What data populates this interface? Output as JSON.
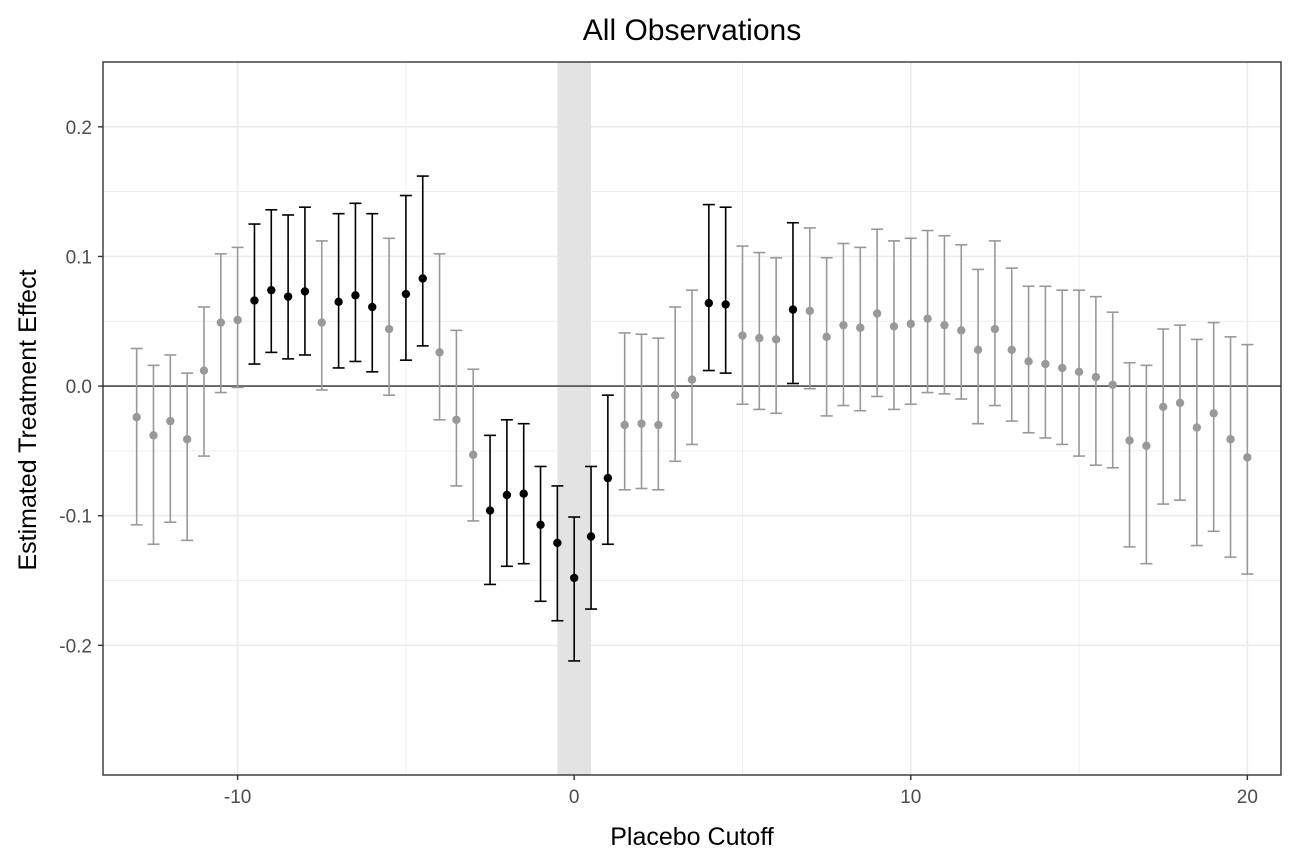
{
  "chart_data": {
    "type": "scatter",
    "title": "All Observations",
    "xlabel": "Placebo Cutoff",
    "ylabel": "Estimated Treatment Effect",
    "xlim": [
      -14,
      21
    ],
    "ylim": [
      -0.3,
      0.25
    ],
    "x_ticks": [
      -10,
      0,
      10,
      20
    ],
    "x_tick_labels": [
      "-10",
      "0",
      "10",
      "20"
    ],
    "y_ticks": [
      -0.2,
      -0.1,
      0.0,
      0.1,
      0.2
    ],
    "y_tick_labels": [
      "-0.2",
      "-0.1",
      "0.0",
      "0.1",
      "0.2"
    ],
    "grid": true,
    "reference_line_y": 0,
    "shaded_band_x": [
      -0.5,
      0.5
    ],
    "colors": {
      "significant": "#000000",
      "not_significant": "#999999",
      "band": "#e3e3e3",
      "grid": "#ebebeb",
      "zero_line": "#4d4d4d"
    },
    "points": [
      {
        "x": -13.0,
        "y": -0.024,
        "lo": -0.107,
        "hi": 0.029,
        "sig": false
      },
      {
        "x": -12.5,
        "y": -0.038,
        "lo": -0.122,
        "hi": 0.016,
        "sig": false
      },
      {
        "x": -12.0,
        "y": -0.027,
        "lo": -0.105,
        "hi": 0.024,
        "sig": false
      },
      {
        "x": -11.5,
        "y": -0.041,
        "lo": -0.119,
        "hi": 0.01,
        "sig": false
      },
      {
        "x": -11.0,
        "y": 0.012,
        "lo": -0.054,
        "hi": 0.061,
        "sig": false
      },
      {
        "x": -10.5,
        "y": 0.049,
        "lo": -0.005,
        "hi": 0.102,
        "sig": false
      },
      {
        "x": -10.0,
        "y": 0.051,
        "lo": -0.001,
        "hi": 0.107,
        "sig": false
      },
      {
        "x": -9.5,
        "y": 0.066,
        "lo": 0.017,
        "hi": 0.125,
        "sig": true
      },
      {
        "x": -9.0,
        "y": 0.074,
        "lo": 0.026,
        "hi": 0.136,
        "sig": true
      },
      {
        "x": -8.5,
        "y": 0.069,
        "lo": 0.021,
        "hi": 0.132,
        "sig": true
      },
      {
        "x": -8.0,
        "y": 0.073,
        "lo": 0.024,
        "hi": 0.138,
        "sig": true
      },
      {
        "x": -7.5,
        "y": 0.049,
        "lo": -0.003,
        "hi": 0.112,
        "sig": false
      },
      {
        "x": -7.0,
        "y": 0.065,
        "lo": 0.014,
        "hi": 0.133,
        "sig": true
      },
      {
        "x": -6.5,
        "y": 0.07,
        "lo": 0.019,
        "hi": 0.141,
        "sig": true
      },
      {
        "x": -6.0,
        "y": 0.061,
        "lo": 0.011,
        "hi": 0.133,
        "sig": true
      },
      {
        "x": -5.5,
        "y": 0.044,
        "lo": -0.007,
        "hi": 0.114,
        "sig": false
      },
      {
        "x": -5.0,
        "y": 0.071,
        "lo": 0.02,
        "hi": 0.147,
        "sig": true
      },
      {
        "x": -4.5,
        "y": 0.083,
        "lo": 0.031,
        "hi": 0.162,
        "sig": true
      },
      {
        "x": -4.0,
        "y": 0.026,
        "lo": -0.026,
        "hi": 0.102,
        "sig": false
      },
      {
        "x": -3.5,
        "y": -0.026,
        "lo": -0.077,
        "hi": 0.043,
        "sig": false
      },
      {
        "x": -3.0,
        "y": -0.053,
        "lo": -0.104,
        "hi": 0.013,
        "sig": false
      },
      {
        "x": -2.5,
        "y": -0.096,
        "lo": -0.153,
        "hi": -0.038,
        "sig": true
      },
      {
        "x": -2.0,
        "y": -0.084,
        "lo": -0.139,
        "hi": -0.026,
        "sig": true
      },
      {
        "x": -1.5,
        "y": -0.083,
        "lo": -0.137,
        "hi": -0.029,
        "sig": true
      },
      {
        "x": -1.0,
        "y": -0.107,
        "lo": -0.166,
        "hi": -0.062,
        "sig": true
      },
      {
        "x": -0.5,
        "y": -0.121,
        "lo": -0.181,
        "hi": -0.077,
        "sig": true
      },
      {
        "x": 0.0,
        "y": -0.148,
        "lo": -0.212,
        "hi": -0.101,
        "sig": true
      },
      {
        "x": 0.5,
        "y": -0.116,
        "lo": -0.172,
        "hi": -0.062,
        "sig": true
      },
      {
        "x": 1.0,
        "y": -0.071,
        "lo": -0.122,
        "hi": -0.007,
        "sig": true
      },
      {
        "x": 1.5,
        "y": -0.03,
        "lo": -0.08,
        "hi": 0.041,
        "sig": false
      },
      {
        "x": 2.0,
        "y": -0.029,
        "lo": -0.079,
        "hi": 0.04,
        "sig": false
      },
      {
        "x": 2.5,
        "y": -0.03,
        "lo": -0.08,
        "hi": 0.037,
        "sig": false
      },
      {
        "x": 3.0,
        "y": -0.007,
        "lo": -0.058,
        "hi": 0.061,
        "sig": false
      },
      {
        "x": 3.5,
        "y": 0.005,
        "lo": -0.045,
        "hi": 0.074,
        "sig": false
      },
      {
        "x": 4.0,
        "y": 0.064,
        "lo": 0.012,
        "hi": 0.14,
        "sig": true
      },
      {
        "x": 4.5,
        "y": 0.063,
        "lo": 0.01,
        "hi": 0.138,
        "sig": true
      },
      {
        "x": 5.0,
        "y": 0.039,
        "lo": -0.014,
        "hi": 0.108,
        "sig": false
      },
      {
        "x": 5.5,
        "y": 0.037,
        "lo": -0.018,
        "hi": 0.103,
        "sig": false
      },
      {
        "x": 6.0,
        "y": 0.036,
        "lo": -0.021,
        "hi": 0.099,
        "sig": false
      },
      {
        "x": 6.5,
        "y": 0.059,
        "lo": 0.002,
        "hi": 0.126,
        "sig": true
      },
      {
        "x": 7.0,
        "y": 0.058,
        "lo": -0.002,
        "hi": 0.122,
        "sig": false
      },
      {
        "x": 7.5,
        "y": 0.038,
        "lo": -0.023,
        "hi": 0.099,
        "sig": false
      },
      {
        "x": 8.0,
        "y": 0.047,
        "lo": -0.015,
        "hi": 0.11,
        "sig": false
      },
      {
        "x": 8.5,
        "y": 0.045,
        "lo": -0.019,
        "hi": 0.107,
        "sig": false
      },
      {
        "x": 9.0,
        "y": 0.056,
        "lo": -0.008,
        "hi": 0.121,
        "sig": false
      },
      {
        "x": 9.5,
        "y": 0.046,
        "lo": -0.018,
        "hi": 0.112,
        "sig": false
      },
      {
        "x": 10.0,
        "y": 0.048,
        "lo": -0.014,
        "hi": 0.114,
        "sig": false
      },
      {
        "x": 10.5,
        "y": 0.052,
        "lo": -0.005,
        "hi": 0.12,
        "sig": false
      },
      {
        "x": 11.0,
        "y": 0.047,
        "lo": -0.006,
        "hi": 0.116,
        "sig": false
      },
      {
        "x": 11.5,
        "y": 0.043,
        "lo": -0.01,
        "hi": 0.109,
        "sig": false
      },
      {
        "x": 12.0,
        "y": 0.028,
        "lo": -0.029,
        "hi": 0.09,
        "sig": false
      },
      {
        "x": 12.5,
        "y": 0.044,
        "lo": -0.015,
        "hi": 0.112,
        "sig": false
      },
      {
        "x": 13.0,
        "y": 0.028,
        "lo": -0.027,
        "hi": 0.091,
        "sig": false
      },
      {
        "x": 13.5,
        "y": 0.019,
        "lo": -0.036,
        "hi": 0.077,
        "sig": false
      },
      {
        "x": 14.0,
        "y": 0.017,
        "lo": -0.04,
        "hi": 0.077,
        "sig": false
      },
      {
        "x": 14.5,
        "y": 0.014,
        "lo": -0.045,
        "hi": 0.074,
        "sig": false
      },
      {
        "x": 15.0,
        "y": 0.011,
        "lo": -0.054,
        "hi": 0.074,
        "sig": false
      },
      {
        "x": 15.5,
        "y": 0.007,
        "lo": -0.061,
        "hi": 0.069,
        "sig": false
      },
      {
        "x": 16.0,
        "y": 0.001,
        "lo": -0.063,
        "hi": 0.057,
        "sig": false
      },
      {
        "x": 16.5,
        "y": -0.042,
        "lo": -0.124,
        "hi": 0.018,
        "sig": false
      },
      {
        "x": 17.0,
        "y": -0.046,
        "lo": -0.137,
        "hi": 0.016,
        "sig": false
      },
      {
        "x": 17.5,
        "y": -0.016,
        "lo": -0.091,
        "hi": 0.044,
        "sig": false
      },
      {
        "x": 18.0,
        "y": -0.013,
        "lo": -0.088,
        "hi": 0.047,
        "sig": false
      },
      {
        "x": 18.5,
        "y": -0.032,
        "lo": -0.123,
        "hi": 0.036,
        "sig": false
      },
      {
        "x": 19.0,
        "y": -0.021,
        "lo": -0.112,
        "hi": 0.049,
        "sig": false
      },
      {
        "x": 19.5,
        "y": -0.041,
        "lo": -0.132,
        "hi": 0.038,
        "sig": false
      },
      {
        "x": 20.0,
        "y": -0.055,
        "lo": -0.145,
        "hi": 0.032,
        "sig": false
      }
    ]
  }
}
